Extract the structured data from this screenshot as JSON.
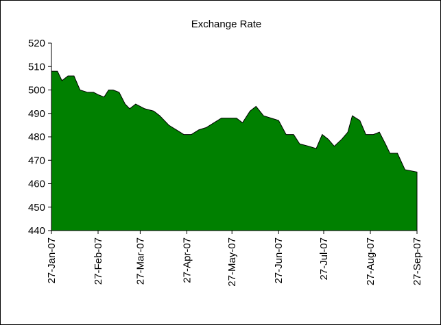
{
  "chart_data": {
    "type": "area",
    "title": "Exchange Rate",
    "x": [
      "2007-01-27",
      "2007-01-31",
      "2007-02-03",
      "2007-02-07",
      "2007-02-11",
      "2007-02-15",
      "2007-02-20",
      "2007-02-24",
      "2007-02-27",
      "2007-03-03",
      "2007-03-06",
      "2007-03-09",
      "2007-03-13",
      "2007-03-17",
      "2007-03-20",
      "2007-03-24",
      "2007-03-30",
      "2007-04-05",
      "2007-04-09",
      "2007-04-15",
      "2007-04-20",
      "2007-04-25",
      "2007-04-30",
      "2007-05-05",
      "2007-05-10",
      "2007-05-15",
      "2007-05-20",
      "2007-05-25",
      "2007-05-30",
      "2007-06-03",
      "2007-06-08",
      "2007-06-12",
      "2007-06-17",
      "2007-06-22",
      "2007-06-27",
      "2007-07-02",
      "2007-07-07",
      "2007-07-11",
      "2007-07-17",
      "2007-07-22",
      "2007-07-26",
      "2007-07-30",
      "2007-08-03",
      "2007-08-08",
      "2007-08-12",
      "2007-08-15",
      "2007-08-20",
      "2007-08-24",
      "2007-08-29",
      "2007-09-02",
      "2007-09-06",
      "2007-09-09",
      "2007-09-14",
      "2007-09-19",
      "2007-09-27"
    ],
    "values": [
      508,
      508,
      504,
      506,
      506,
      500,
      499,
      499,
      498,
      497,
      500,
      500,
      499,
      494,
      492,
      494,
      492,
      491,
      489,
      485,
      483,
      481,
      481,
      483,
      484,
      486,
      488,
      488,
      488,
      486,
      491,
      493,
      489,
      488,
      487,
      481,
      481,
      477,
      476,
      475,
      481,
      479,
      476,
      479,
      482,
      489,
      487,
      481,
      481,
      482,
      477,
      473,
      473,
      466,
      465
    ],
    "color": "#008000",
    "xlim": [
      "2007-01-27",
      "2007-09-27"
    ],
    "xticks": [
      {
        "value": "2007-01-27",
        "label": "27-Jan-07"
      },
      {
        "value": "2007-02-27",
        "label": "27-Feb-07"
      },
      {
        "value": "2007-03-27",
        "label": "27-Mar-07"
      },
      {
        "value": "2007-04-27",
        "label": "27-Apr-07"
      },
      {
        "value": "2007-05-27",
        "label": "27-May-07"
      },
      {
        "value": "2007-06-27",
        "label": "27-Jun-07"
      },
      {
        "value": "2007-07-27",
        "label": "27-Jul-07"
      },
      {
        "value": "2007-08-27",
        "label": "27-Aug-07"
      },
      {
        "value": "2007-09-27",
        "label": "27-Sep-07"
      }
    ],
    "ylim": [
      440,
      520
    ],
    "yticks": [
      440,
      450,
      460,
      470,
      480,
      490,
      500,
      510,
      520
    ]
  }
}
